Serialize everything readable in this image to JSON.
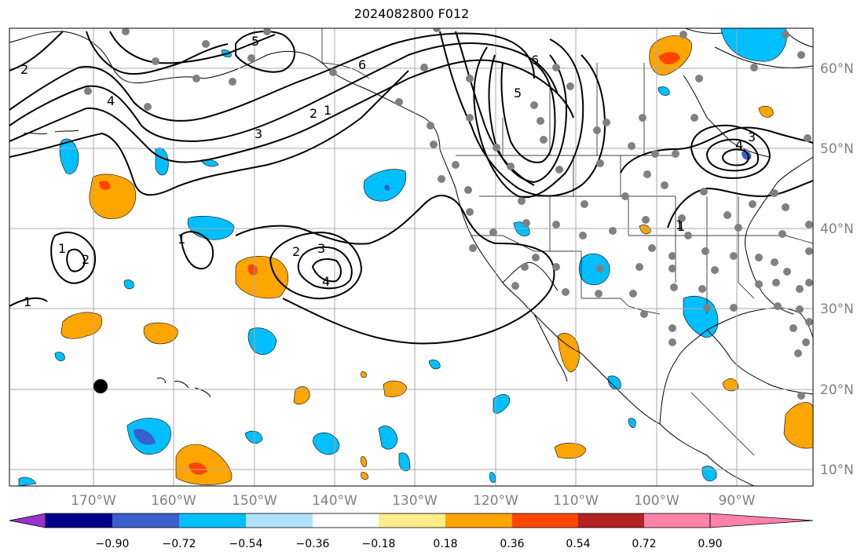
{
  "title": "2024082800 F012",
  "axes": {
    "latitude_labels": [
      "60°N",
      "50°N",
      "40°N",
      "30°N",
      "20°N",
      "10°N"
    ],
    "longitude_labels": [
      "170°W",
      "160°W",
      "150°W",
      "140°W",
      "130°W",
      "120°W",
      "110°W",
      "100°W",
      "90°W"
    ]
  },
  "colorbar": {
    "tick_labels": [
      "−0.90",
      "−0.72",
      "−0.54",
      "−0.36",
      "−0.18",
      "0.18",
      "0.36",
      "0.54",
      "0.72",
      "0.90"
    ],
    "colors": [
      "#9a32cd",
      "#00008b",
      "#3a5fcd",
      "#00bfff",
      "#b0e2ff",
      "#ffffff",
      "#ffec8b",
      "#ffa500",
      "#ff4500",
      "#b22222",
      "#ff82ab"
    ]
  },
  "contour_labels": [
    "2",
    "4",
    "3",
    "5",
    "6",
    "2",
    "1",
    "1",
    "5",
    "6",
    "4",
    "3",
    "1",
    "1",
    "2",
    "3",
    "2",
    "4",
    "1",
    "1"
  ],
  "colors": {
    "grid": "#aaaaaa",
    "coast": "#000000",
    "station_gray": "#808080",
    "station_black": "#000000",
    "shade_warm": "#ffa500",
    "shade_hot": "#ff4500",
    "shade_cool": "#00bfff",
    "shade_cooler": "#3a5fcd"
  }
}
